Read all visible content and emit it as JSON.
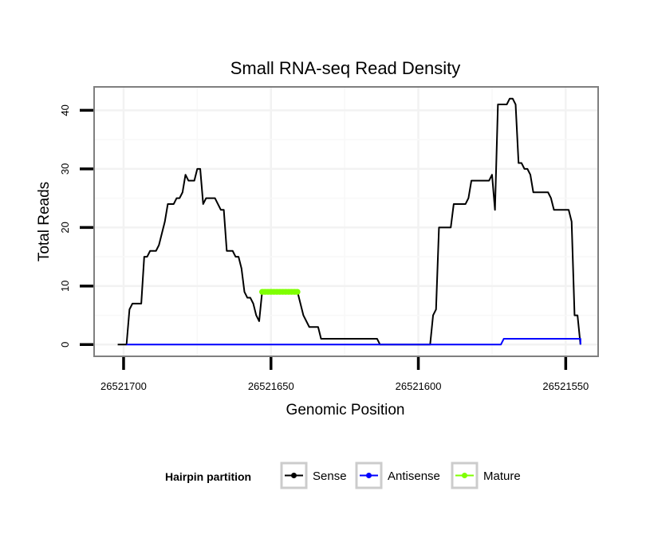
{
  "chart_data": {
    "type": "line",
    "title": "Small RNA-seq Read Density",
    "xlabel": "Genomic Position",
    "ylabel": "Total Reads",
    "xlim": [
      26521710,
      26521539
    ],
    "ylim": [
      -2,
      44
    ],
    "x_ticks": [
      26521700,
      26521650,
      26521600,
      26521550
    ],
    "x_tick_labels": [
      "26521700",
      "26521650",
      "26521600",
      "26521550"
    ],
    "y_ticks": [
      0,
      10,
      20,
      30,
      40
    ],
    "y_tick_labels": [
      "0",
      "10",
      "20",
      "30",
      "40"
    ],
    "grid": true,
    "legend_position": "bottom",
    "legend_title": "Hairpin partition",
    "series": [
      {
        "name": "Sense",
        "color": "#000000",
        "points": [
          [
            26521702,
            0
          ],
          [
            26521699,
            0
          ],
          [
            26521698,
            6
          ],
          [
            26521697,
            7
          ],
          [
            26521694,
            7
          ],
          [
            26521693,
            15
          ],
          [
            26521692,
            15
          ],
          [
            26521691,
            16
          ],
          [
            26521689,
            16
          ],
          [
            26521688,
            17
          ],
          [
            26521686,
            21
          ],
          [
            26521685,
            24
          ],
          [
            26521683,
            24
          ],
          [
            26521682,
            25
          ],
          [
            26521681,
            25
          ],
          [
            26521680,
            26
          ],
          [
            26521679,
            29
          ],
          [
            26521678,
            28
          ],
          [
            26521676,
            28
          ],
          [
            26521675,
            30
          ],
          [
            26521674,
            30
          ],
          [
            26521673,
            24
          ],
          [
            26521672,
            25
          ],
          [
            26521669,
            25
          ],
          [
            26521667,
            23
          ],
          [
            26521666,
            23
          ],
          [
            26521665,
            16
          ],
          [
            26521663,
            16
          ],
          [
            26521662,
            15
          ],
          [
            26521661,
            15
          ],
          [
            26521660,
            13
          ],
          [
            26521659,
            9
          ],
          [
            26521658,
            8
          ],
          [
            26521657,
            8
          ],
          [
            26521656,
            7
          ],
          [
            26521655,
            5
          ],
          [
            26521654,
            4
          ],
          [
            26521653,
            9
          ],
          [
            26521641,
            9
          ],
          [
            26521639,
            5
          ],
          [
            26521637,
            3
          ],
          [
            26521634,
            3
          ],
          [
            26521633,
            1
          ],
          [
            26521614,
            1
          ],
          [
            26521613,
            0
          ],
          [
            26521596,
            0
          ],
          [
            26521595,
            5
          ],
          [
            26521594,
            6
          ],
          [
            26521593,
            20
          ],
          [
            26521589,
            20
          ],
          [
            26521588,
            24
          ],
          [
            26521584,
            24
          ],
          [
            26521583,
            25
          ],
          [
            26521582,
            28
          ],
          [
            26521576,
            28
          ],
          [
            26521575,
            29
          ],
          [
            26521574,
            23
          ],
          [
            26521573,
            41
          ],
          [
            26521570,
            41
          ],
          [
            26521569,
            42
          ],
          [
            26521568,
            42
          ],
          [
            26521567,
            41
          ],
          [
            26521566,
            31
          ],
          [
            26521565,
            31
          ],
          [
            26521564,
            30
          ],
          [
            26521563,
            30
          ],
          [
            26521562,
            29
          ],
          [
            26521561,
            26
          ],
          [
            26521556,
            26
          ],
          [
            26521555,
            25
          ],
          [
            26521554,
            23
          ],
          [
            26521549,
            23
          ],
          [
            26521548,
            21
          ],
          [
            26521547,
            5
          ],
          [
            26521546,
            5
          ],
          [
            26521545,
            0
          ]
        ]
      },
      {
        "name": "Antisense",
        "color": "#0000ff",
        "points": [
          [
            26521699,
            0
          ],
          [
            26521572,
            0
          ],
          [
            26521571,
            1
          ],
          [
            26521545,
            1
          ],
          [
            26521545,
            0
          ]
        ]
      },
      {
        "name": "Mature",
        "color": "#7fff00",
        "points": [
          [
            26521653,
            9
          ],
          [
            26521641,
            9
          ]
        ]
      }
    ]
  }
}
